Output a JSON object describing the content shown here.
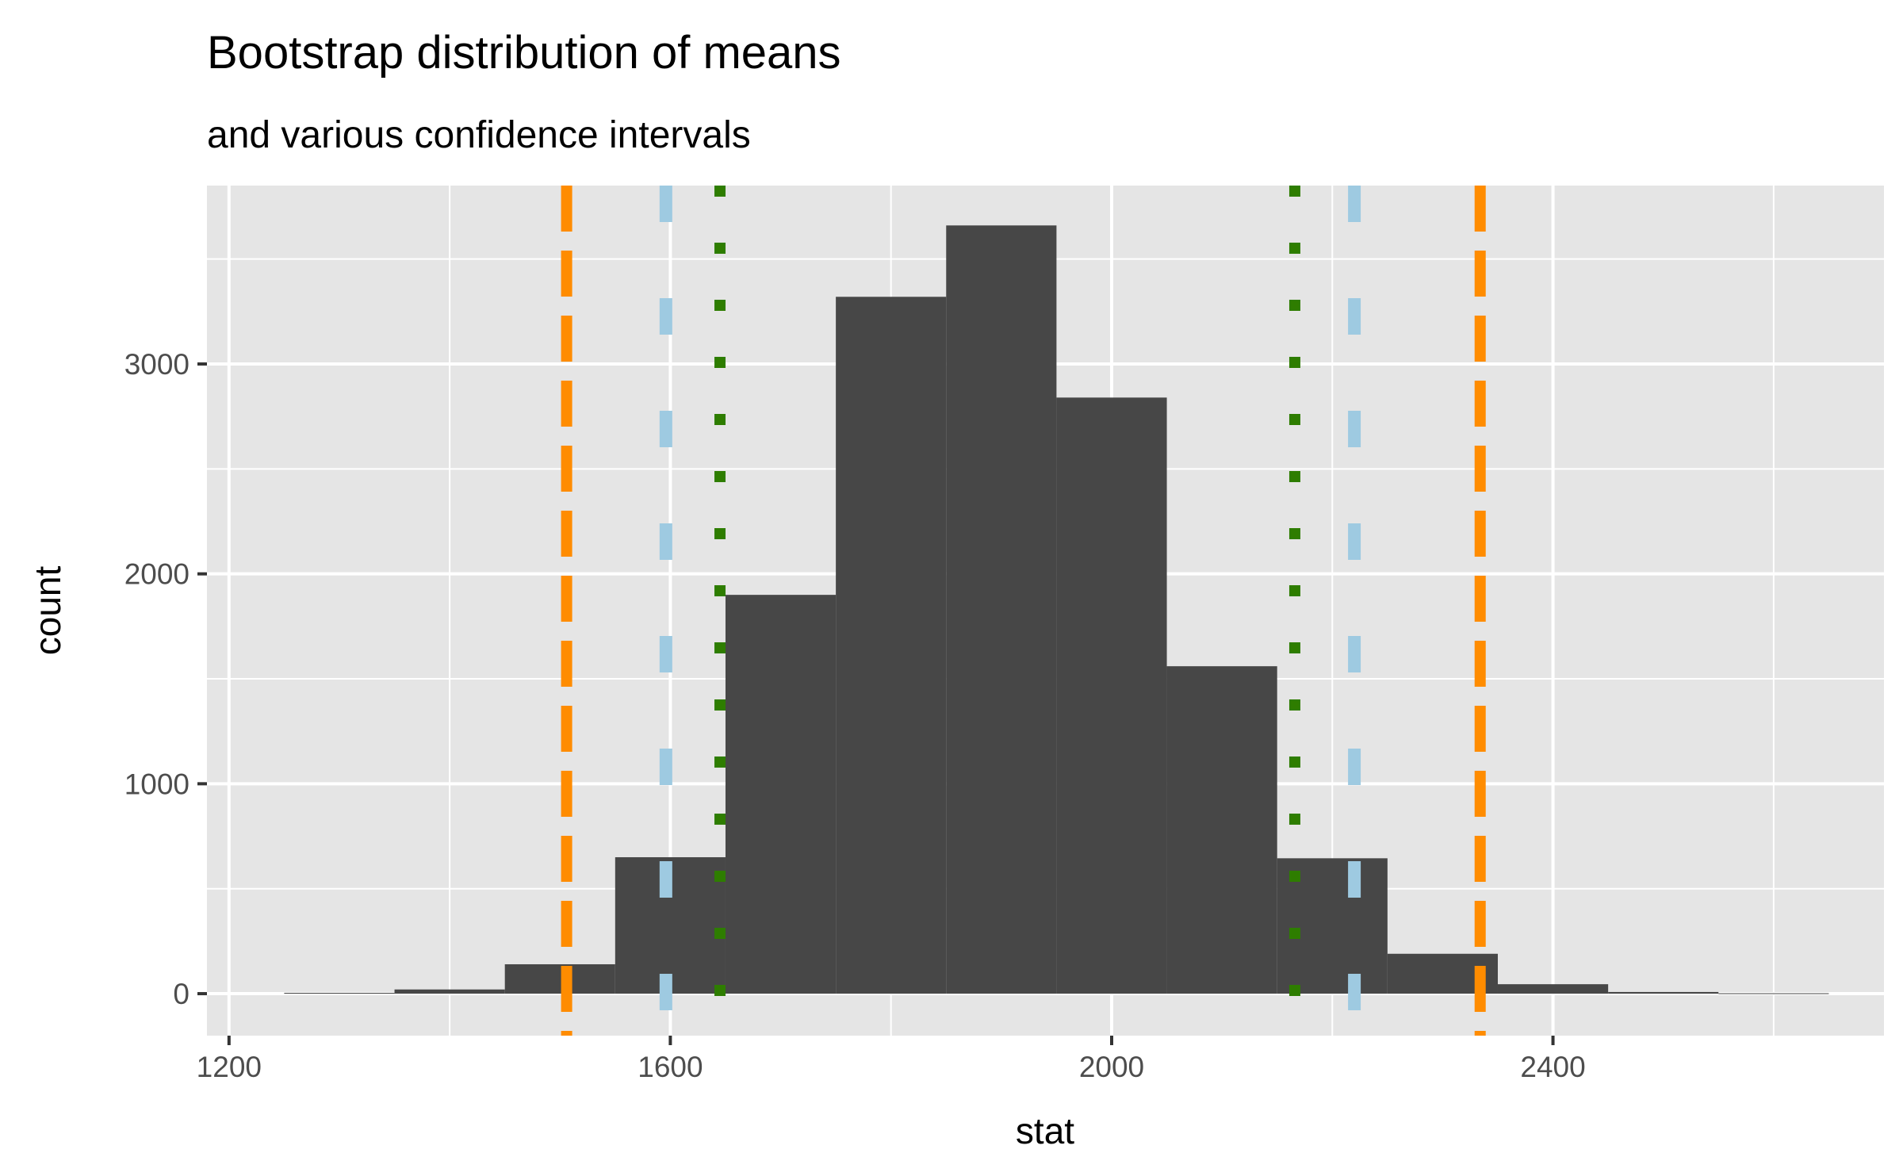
{
  "chart_data": {
    "type": "bar",
    "title": "Bootstrap distribution of means",
    "subtitle": "and various confidence intervals",
    "xlabel": "stat",
    "ylabel": "count",
    "xlim": [
      1180,
      2700
    ],
    "ylim": [
      -200,
      3850
    ],
    "x_ticks": [
      1200,
      1600,
      2000,
      2400
    ],
    "y_ticks": [
      0,
      1000,
      2000,
      3000
    ],
    "bins": [
      {
        "x0": 1250,
        "x1": 1350,
        "count": 4
      },
      {
        "x0": 1350,
        "x1": 1450,
        "count": 20
      },
      {
        "x0": 1450,
        "x1": 1550,
        "count": 140
      },
      {
        "x0": 1550,
        "x1": 1650,
        "count": 650
      },
      {
        "x0": 1650,
        "x1": 1750,
        "count": 1900
      },
      {
        "x0": 1750,
        "x1": 1850,
        "count": 3320
      },
      {
        "x0": 1850,
        "x1": 1950,
        "count": 3660
      },
      {
        "x0": 1950,
        "x1": 2050,
        "count": 2840
      },
      {
        "x0": 2050,
        "x1": 2150,
        "count": 1560
      },
      {
        "x0": 2150,
        "x1": 2250,
        "count": 645
      },
      {
        "x0": 2250,
        "x1": 2350,
        "count": 190
      },
      {
        "x0": 2350,
        "x1": 2450,
        "count": 45
      },
      {
        "x0": 2450,
        "x1": 2550,
        "count": 8
      },
      {
        "x0": 2550,
        "x1": 2650,
        "count": 2
      }
    ],
    "bar_color": "#474747",
    "vlines": [
      {
        "x": 1506,
        "color": "#ff8c00",
        "style": "long-dash"
      },
      {
        "x": 2334,
        "color": "#ff8c00",
        "style": "long-dash"
      },
      {
        "x": 1596,
        "color": "#9ecae1",
        "style": "dash"
      },
      {
        "x": 2220,
        "color": "#9ecae1",
        "style": "dash"
      },
      {
        "x": 1645,
        "color": "#2e7d00",
        "style": "dotted"
      },
      {
        "x": 2166,
        "color": "#2e7d00",
        "style": "dotted"
      }
    ],
    "panel_background": "#e5e5e5",
    "grid": true,
    "legend": "none"
  }
}
